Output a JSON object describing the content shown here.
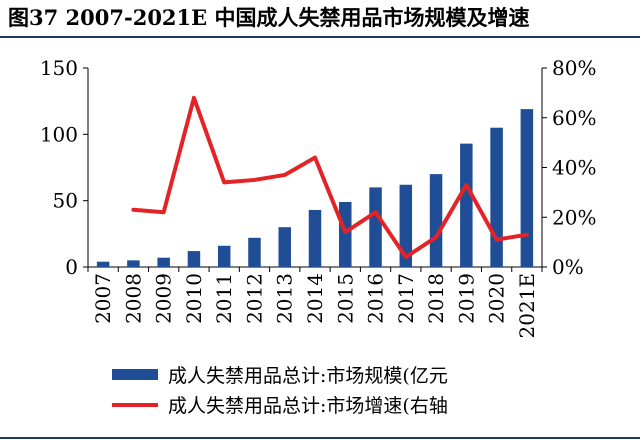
{
  "figure": {
    "label": "图37",
    "title": "2007-2021E 中国成人失禁用品市场规模及增速"
  },
  "chart_data": {
    "type": "bar",
    "categories": [
      "2007",
      "2008",
      "2009",
      "2010",
      "2011",
      "2012",
      "2013",
      "2014",
      "2015",
      "2016",
      "2017",
      "2018",
      "2019",
      "2020",
      "2021E"
    ],
    "series": [
      {
        "name": "成人失禁用品总计:市场规模(亿元",
        "type": "bar",
        "axis": "left",
        "color": "#1f4e96",
        "values": [
          4,
          5,
          7,
          12,
          16,
          22,
          30,
          43,
          49,
          60,
          62,
          70,
          93,
          105,
          119
        ]
      },
      {
        "name": "成人失禁用品总计:市场增速(右轴",
        "type": "line",
        "axis": "right",
        "color": "#e32326",
        "values": [
          null,
          23,
          22,
          68,
          34,
          35,
          37,
          44,
          14,
          22,
          4,
          12,
          33,
          11,
          13
        ]
      }
    ],
    "y_left": {
      "min": 0,
      "max": 150,
      "ticks": [
        "0",
        "50",
        "100",
        "150"
      ]
    },
    "y_right": {
      "min": 0,
      "max": 80,
      "ticks": [
        "0%",
        "20%",
        "40%",
        "60%",
        "80%"
      ]
    },
    "legend_position": "bottom"
  }
}
